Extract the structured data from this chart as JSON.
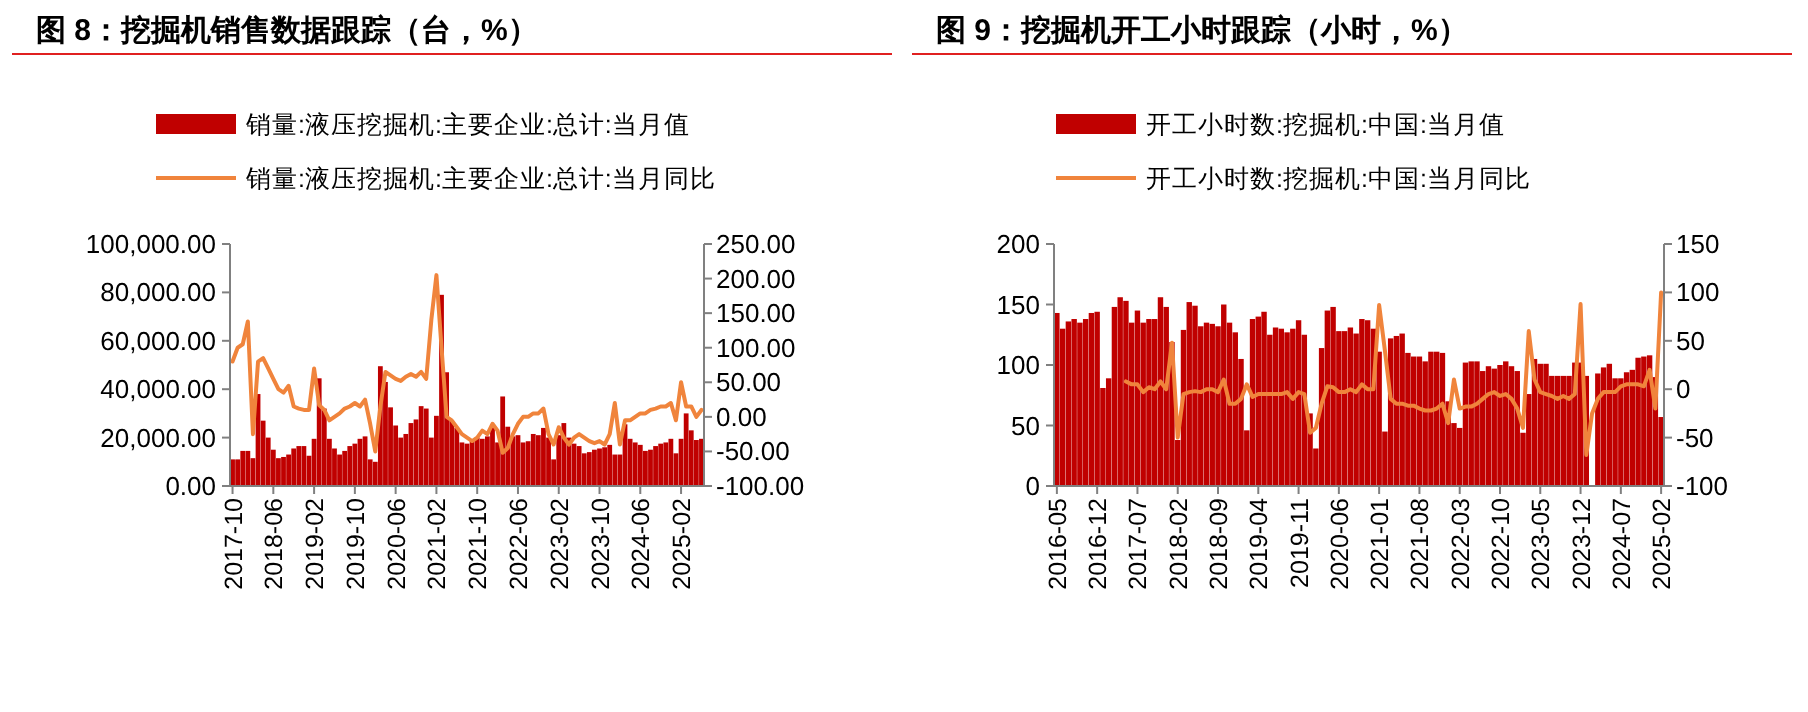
{
  "chart_data": [
    {
      "type": "bar",
      "title": "图 8：挖掘机销售数据跟踪（台，%）",
      "legend": "top",
      "categories": [
        "2017-10",
        null,
        null,
        null,
        null,
        null,
        null,
        null,
        "2018-06",
        null,
        null,
        null,
        null,
        null,
        null,
        null,
        "2019-02",
        null,
        null,
        null,
        null,
        null,
        null,
        null,
        "2019-10",
        null,
        null,
        null,
        null,
        null,
        null,
        null,
        "2020-06",
        null,
        null,
        null,
        null,
        null,
        null,
        null,
        "2021-02",
        null,
        null,
        null,
        null,
        null,
        null,
        null,
        "2021-10",
        null,
        null,
        null,
        null,
        null,
        null,
        null,
        "2022-06",
        null,
        null,
        null,
        null,
        null,
        null,
        null,
        "2023-02",
        null,
        null,
        null,
        null,
        null,
        null,
        null,
        "2023-10",
        null,
        null,
        null,
        null,
        null,
        null,
        null,
        "2024-06",
        null,
        null,
        null,
        null,
        null,
        null,
        null,
        "2025-02",
        null,
        null,
        null,
        null
      ],
      "series": [
        {
          "name": "销量:液压挖掘机:主要企业:总计:当月值",
          "color": "#c00000",
          "values": [
            11000,
            11000,
            14500,
            14500,
            11500,
            38000,
            27000,
            20000,
            15000,
            11500,
            12000,
            13000,
            15500,
            16500,
            16500,
            12500,
            19500,
            44500,
            32000,
            19500,
            15500,
            13000,
            14500,
            16500,
            17500,
            19500,
            20500,
            11000,
            10000,
            49500,
            43000,
            32500,
            25000,
            20000,
            21500,
            26000,
            27500,
            33000,
            32000,
            20000,
            29000,
            79000,
            47000,
            27000,
            24000,
            18000,
            17500,
            18500,
            20000,
            19500,
            20500,
            24000,
            18000,
            37000,
            24500,
            20500,
            21000,
            18000,
            18500,
            21500,
            21000,
            24000,
            20000,
            11000,
            21000,
            26000,
            20000,
            17500,
            16500,
            13500,
            14000,
            15000,
            15500,
            16000,
            17000,
            13000,
            13000,
            25500,
            19500,
            18000,
            17000,
            14500,
            15000,
            16500,
            17500,
            18000,
            19500,
            13500,
            19500,
            30000,
            23000,
            19000,
            19500
          ]
        },
        {
          "name": "销量:液压挖掘机:主要企业:总计:当月同比",
          "type": "line",
          "axis": "y2",
          "color": "#f0843c",
          "values": [
            80,
            100,
            105,
            138,
            -25,
            80,
            85,
            70,
            55,
            40,
            35,
            45,
            15,
            12,
            10,
            10,
            70,
            17,
            10,
            -5,
            0,
            5,
            12,
            15,
            20,
            15,
            25,
            -10,
            -50,
            15,
            65,
            60,
            55,
            52,
            58,
            62,
            58,
            65,
            55,
            140,
            205,
            100,
            0,
            -5,
            -15,
            -25,
            -30,
            -35,
            -30,
            -20,
            -25,
            -10,
            -20,
            -52,
            -45,
            -25,
            -10,
            0,
            0,
            5,
            5,
            12,
            -25,
            -40,
            -15,
            -30,
            -40,
            -30,
            -25,
            -30,
            -35,
            -38,
            -35,
            -40,
            -25,
            20,
            -40,
            -5,
            -5,
            0,
            5,
            5,
            10,
            12,
            15,
            15,
            20,
            -5,
            50,
            15,
            15,
            0,
            10
          ]
        }
      ],
      "ylim": [
        0,
        100000
      ],
      "yticks": [
        {
          "value": 0,
          "label": "0.00"
        },
        {
          "value": 20000,
          "label": "20,000.00"
        },
        {
          "value": 40000,
          "label": "40,000.00"
        },
        {
          "value": 60000,
          "label": "60,000.00"
        },
        {
          "value": 80000,
          "label": "80,000.00"
        },
        {
          "value": 100000,
          "label": "100,000.00"
        }
      ],
      "y2lim": [
        -100,
        250
      ],
      "y2ticks": [
        {
          "value": -100,
          "label": "-100.00"
        },
        {
          "value": -50,
          "label": "-50.00"
        },
        {
          "value": 0,
          "label": "0.00"
        },
        {
          "value": 50,
          "label": "50.00"
        },
        {
          "value": 100,
          "label": "100.00"
        },
        {
          "value": 150,
          "label": "150.00"
        },
        {
          "value": 200,
          "label": "200.00"
        },
        {
          "value": 250,
          "label": "250.00"
        }
      ]
    },
    {
      "type": "bar",
      "title": "图 9：挖掘机开工小时跟踪（小时，%）",
      "legend": "top",
      "categories": [
        "2016-05",
        null,
        null,
        null,
        null,
        null,
        null,
        "2016-12",
        null,
        null,
        null,
        null,
        null,
        null,
        "2017-07",
        null,
        null,
        null,
        null,
        null,
        null,
        "2018-02",
        null,
        null,
        null,
        null,
        null,
        null,
        "2018-09",
        null,
        null,
        null,
        null,
        null,
        null,
        "2019-04",
        null,
        null,
        null,
        null,
        null,
        null,
        "2019-11",
        null,
        null,
        null,
        null,
        null,
        null,
        "2020-06",
        null,
        null,
        null,
        null,
        null,
        null,
        "2021-01",
        null,
        null,
        null,
        null,
        null,
        null,
        "2021-08",
        null,
        null,
        null,
        null,
        null,
        null,
        "2022-03",
        null,
        null,
        null,
        null,
        null,
        null,
        "2022-10",
        null,
        null,
        null,
        null,
        null,
        null,
        "2023-05",
        null,
        null,
        null,
        null,
        null,
        null,
        "2023-12",
        null,
        null,
        null,
        null,
        null,
        null,
        "2024-07",
        null,
        null,
        null,
        null,
        null,
        null,
        "2025-02"
      ],
      "series": [
        {
          "name": "开工小时数:挖掘机:中国:当月值",
          "color": "#c00000",
          "values": [
            143,
            130,
            136,
            138,
            135,
            138,
            143,
            144,
            81,
            89,
            148,
            156,
            153,
            135,
            145,
            135,
            138,
            138,
            156,
            148,
            119,
            38,
            129,
            152,
            149,
            132,
            135,
            134,
            132,
            150,
            135,
            127,
            105,
            46,
            138,
            140,
            144,
            125,
            131,
            130,
            127,
            130,
            137,
            125,
            60,
            31,
            114,
            145,
            148,
            128,
            128,
            131,
            126,
            138,
            137,
            130,
            111,
            45,
            122,
            124,
            126,
            110,
            107,
            107,
            103,
            111,
            111,
            110,
            70,
            52,
            48,
            102,
            103,
            103,
            95,
            99,
            97,
            100,
            103,
            99,
            95,
            44,
            76,
            105,
            101,
            101,
            91,
            91,
            91,
            91,
            102,
            102,
            91,
            null,
            93,
            98,
            101,
            89,
            89,
            94,
            96,
            106,
            107,
            108,
            90,
            57
          ]
        },
        {
          "name": "开工小时数:挖掘机:中国:当月同比",
          "type": "line",
          "axis": "y2",
          "color": "#f0843c",
          "values": [
            null,
            null,
            null,
            null,
            null,
            null,
            null,
            null,
            null,
            null,
            null,
            null,
            8,
            5,
            5,
            -3,
            2,
            0,
            8,
            0,
            48,
            -50,
            -5,
            -3,
            -2,
            -3,
            0,
            0,
            -3,
            10,
            -15,
            -15,
            -10,
            5,
            -8,
            -5,
            -5,
            -5,
            -5,
            -5,
            -3,
            -10,
            -3,
            -5,
            -45,
            -40,
            -15,
            3,
            2,
            -3,
            -3,
            0,
            -3,
            5,
            0,
            0,
            87,
            40,
            -10,
            -15,
            -15,
            -17,
            -17,
            -20,
            -22,
            -22,
            -20,
            -15,
            -35,
            10,
            -20,
            -18,
            -18,
            -15,
            -10,
            -5,
            -3,
            -7,
            -5,
            -10,
            -20,
            -40,
            60,
            10,
            -3,
            -5,
            -7,
            -10,
            -7,
            -10,
            -5,
            88,
            -68,
            -25,
            -10,
            -3,
            -3,
            -3,
            3,
            5,
            5,
            5,
            3,
            20,
            -20,
            100
          ]
        }
      ],
      "ylim": [
        0,
        200
      ],
      "yticks": [
        0,
        50,
        100,
        150,
        200
      ],
      "y2lim": [
        -100,
        150
      ],
      "y2ticks": [
        -100,
        -50,
        0,
        50,
        100,
        150
      ]
    }
  ]
}
